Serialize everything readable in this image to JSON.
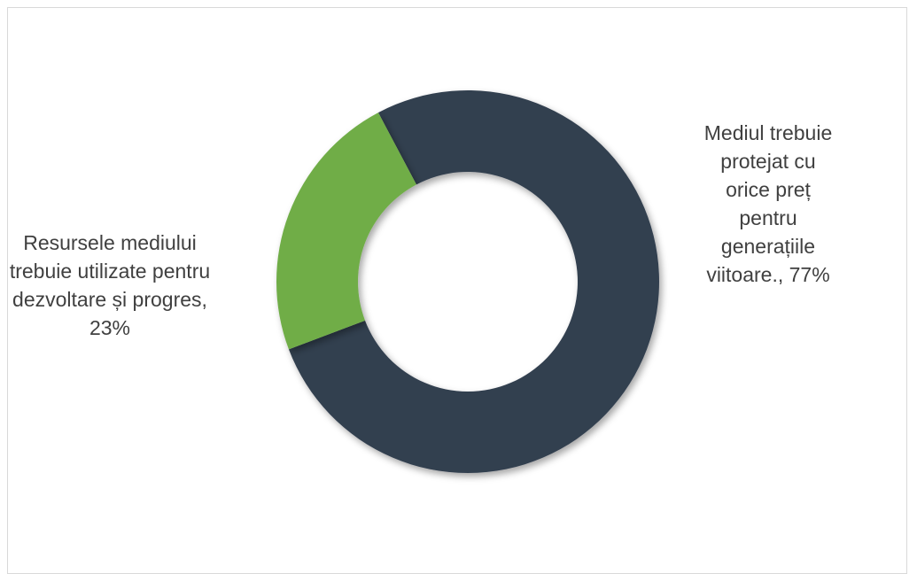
{
  "chart_data": {
    "type": "pie",
    "variant": "donut",
    "title": "",
    "slices": [
      {
        "label": "Mediul trebuie protejat cu orice preț pentru generațiile viitoare.",
        "value": 77,
        "display": "Mediul trebuie protejat cu orice preț pentru generațiile viitoare., 77%",
        "color": "#333f50"
      },
      {
        "label": "Resursele mediului trebuie utilizate pentru dezvoltare și progres",
        "value": 23,
        "display": "Resursele mediului trebuie utilizate pentru dezvoltare și progres, 23%",
        "color": "#70ad47"
      }
    ],
    "legend": "none",
    "data_labels": "outside"
  }
}
